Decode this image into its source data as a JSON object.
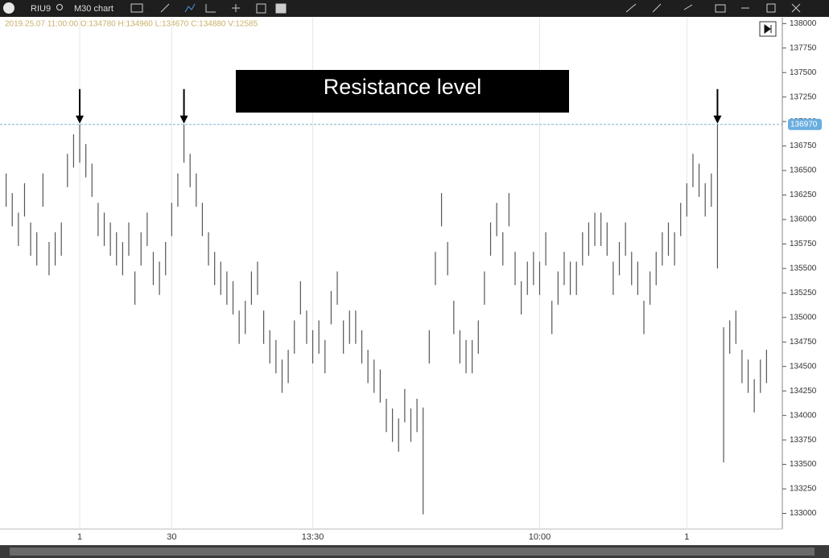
{
  "toolbar": {
    "symbol": "RIU9",
    "timeframe": "M30 chart"
  },
  "chart_data": {
    "type": "ohlc",
    "header": "2019.25.07 11:00:00 O:134780 H:134960 L:134670 C:134880 V:12585",
    "annotation": "Resistance level",
    "resistance": {
      "value": 136970,
      "label": "136970"
    },
    "high": [
      136470,
      136270,
      136070,
      136370,
      135970,
      135870,
      136470,
      135770,
      135870,
      135970,
      136670,
      136870,
      136970,
      136770,
      136570,
      136170,
      136070,
      135970,
      135870,
      135770,
      135970,
      135470,
      135870,
      136070,
      135670,
      135570,
      135770,
      136170,
      136470,
      136970,
      136670,
      136470,
      136170,
      135870,
      135670,
      135570,
      135470,
      135370,
      135070,
      135170,
      135470,
      135570,
      135070,
      134870,
      134770,
      134570,
      134670,
      134970,
      135370,
      135070,
      134870,
      134970,
      134770,
      135270,
      135470,
      134970,
      135070,
      135070,
      134870,
      134670,
      134570,
      134470,
      134170,
      134070,
      133970,
      134270,
      134070,
      134170,
      134080,
      134870,
      135670,
      136270,
      135770,
      135170,
      134870,
      134770,
      134770,
      134970,
      135470,
      135970,
      136170,
      135870,
      136270,
      135670,
      135370,
      135570,
      135670,
      135570,
      135870,
      135170,
      135470,
      135670,
      135570,
      135570,
      135870,
      135970,
      136070,
      136070,
      135970,
      135570,
      135770,
      135970,
      135670,
      135570,
      135170,
      135470,
      135670,
      135870,
      135970,
      135870,
      136170,
      136370,
      136670,
      136570,
      136370,
      136470,
      136970,
      134900,
      134970,
      135070,
      134670,
      134570,
      134370,
      134570,
      134670
    ],
    "low": [
      136130,
      135930,
      135730,
      136030,
      135630,
      135530,
      136130,
      135430,
      135530,
      135630,
      136330,
      136530,
      136580,
      136430,
      136230,
      135830,
      135730,
      135630,
      135530,
      135430,
      135630,
      135130,
      135530,
      135730,
      135330,
      135230,
      135430,
      135830,
      136130,
      136580,
      136330,
      136130,
      135830,
      135530,
      135330,
      135230,
      135130,
      135030,
      134730,
      134830,
      135130,
      135230,
      134730,
      134530,
      134430,
      134230,
      134330,
      134630,
      135030,
      134730,
      134530,
      134630,
      134430,
      134930,
      135130,
      134630,
      134730,
      134730,
      134530,
      134330,
      134230,
      134130,
      133830,
      133730,
      133630,
      133930,
      133730,
      133830,
      132990,
      134530,
      135330,
      135930,
      135430,
      134830,
      134530,
      134430,
      134430,
      134630,
      135130,
      135630,
      135830,
      135530,
      135930,
      135330,
      135030,
      135230,
      135330,
      135230,
      135530,
      134830,
      135130,
      135330,
      135230,
      135230,
      135530,
      135630,
      135730,
      135730,
      135630,
      135230,
      135430,
      135630,
      135330,
      135230,
      134830,
      135130,
      135330,
      135530,
      135630,
      135530,
      135830,
      136030,
      136330,
      136230,
      136030,
      136130,
      135500,
      133520,
      134630,
      134730,
      134330,
      134230,
      134030,
      134230,
      134330
    ],
    "color": "#555555",
    "ylim": [
      132840,
      138060
    ],
    "yticks": [
      133000,
      133250,
      133500,
      133750,
      134000,
      134250,
      134500,
      134750,
      135000,
      135250,
      135500,
      135750,
      136000,
      136250,
      136500,
      136750,
      137000,
      137250,
      137500,
      137750,
      138000
    ],
    "xlim": [
      -1,
      125
    ],
    "xticks": [
      {
        "value": 12,
        "label": "1"
      },
      {
        "value": 27,
        "label": "30"
      },
      {
        "value": 50,
        "label": "13:30"
      },
      {
        "value": 87,
        "label": "10:00"
      },
      {
        "value": 111,
        "label": "1"
      }
    ],
    "grid": true
  }
}
